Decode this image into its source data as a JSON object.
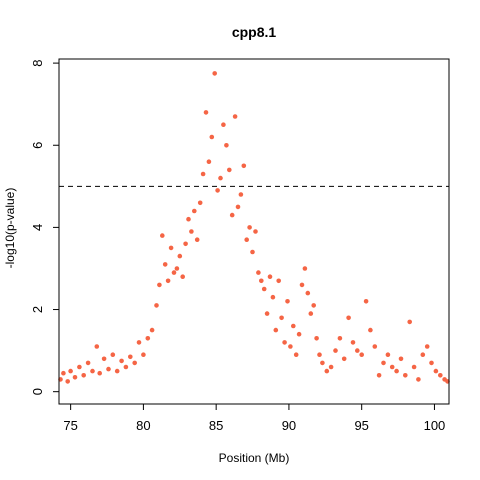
{
  "chart_data": {
    "type": "scatter",
    "title": "cpp8.1",
    "xlabel": "Position (Mb)",
    "ylabel": "-log10(p-value)",
    "xlim": [
      74.2,
      101
    ],
    "ylim": [
      -0.3,
      8.1
    ],
    "x_ticks": [
      75,
      80,
      85,
      90,
      95,
      100
    ],
    "y_ticks": [
      0,
      2,
      4,
      6,
      8
    ],
    "threshold": {
      "value": 5,
      "style": "dashed"
    },
    "grid": false,
    "legend": "none",
    "point_color": "#f56545",
    "threshold_color": "#000000",
    "series": [
      {
        "x": [
          74.3,
          74.5,
          74.8,
          75.0,
          75.3,
          75.6,
          75.9,
          76.2,
          76.5,
          76.8,
          77.0,
          77.3,
          77.6,
          77.9,
          78.2,
          78.5,
          78.8,
          79.1,
          79.4,
          79.7,
          80.0,
          80.3,
          80.6,
          80.9,
          81.1,
          81.3,
          81.5,
          81.7,
          81.9,
          82.1,
          82.3,
          82.5,
          82.7,
          82.9,
          83.1,
          83.3,
          83.5,
          83.7,
          83.9,
          84.1,
          84.3,
          84.5,
          84.7,
          84.9,
          85.1,
          85.3,
          85.5,
          85.7,
          85.9,
          86.1,
          86.3,
          86.5,
          86.7,
          86.9,
          87.1,
          87.3,
          87.5,
          87.7,
          87.9,
          88.1,
          88.3,
          88.5,
          88.7,
          88.9,
          89.1,
          89.3,
          89.5,
          89.7,
          89.9,
          90.1,
          90.3,
          90.5,
          90.7,
          90.9,
          91.1,
          91.3,
          91.5,
          91.7,
          91.9,
          92.1,
          92.3,
          92.6,
          92.9,
          93.2,
          93.5,
          93.8,
          94.1,
          94.4,
          94.7,
          95.0,
          95.3,
          95.6,
          95.9,
          96.2,
          96.5,
          96.8,
          97.1,
          97.4,
          97.7,
          98.0,
          98.3,
          98.6,
          98.9,
          99.2,
          99.5,
          99.8,
          100.1,
          100.4,
          100.7,
          100.9
        ],
        "y": [
          0.3,
          0.45,
          0.25,
          0.5,
          0.35,
          0.6,
          0.4,
          0.7,
          0.5,
          1.1,
          0.45,
          0.8,
          0.55,
          0.9,
          0.5,
          0.75,
          0.6,
          0.85,
          0.7,
          1.2,
          0.9,
          1.3,
          1.5,
          2.1,
          2.6,
          3.8,
          3.1,
          2.7,
          3.5,
          2.9,
          3.0,
          3.3,
          2.8,
          3.6,
          4.2,
          3.9,
          4.4,
          3.7,
          4.6,
          5.3,
          6.8,
          5.6,
          6.2,
          7.75,
          4.9,
          5.2,
          6.5,
          6.0,
          5.4,
          4.3,
          6.7,
          4.5,
          4.8,
          5.5,
          3.7,
          4.0,
          3.4,
          3.9,
          2.9,
          2.7,
          2.5,
          1.9,
          2.8,
          2.3,
          1.5,
          2.7,
          1.8,
          1.2,
          2.2,
          1.1,
          1.6,
          0.9,
          1.4,
          2.6,
          3.0,
          2.4,
          1.9,
          2.1,
          1.3,
          0.9,
          0.7,
          0.5,
          0.6,
          1.0,
          1.3,
          0.8,
          1.8,
          1.2,
          1.0,
          0.9,
          2.2,
          1.5,
          1.1,
          0.4,
          0.7,
          0.9,
          0.6,
          0.5,
          0.8,
          0.4,
          1.7,
          0.6,
          0.3,
          0.9,
          1.1,
          0.7,
          0.5,
          0.4,
          0.3,
          0.25
        ]
      }
    ]
  }
}
